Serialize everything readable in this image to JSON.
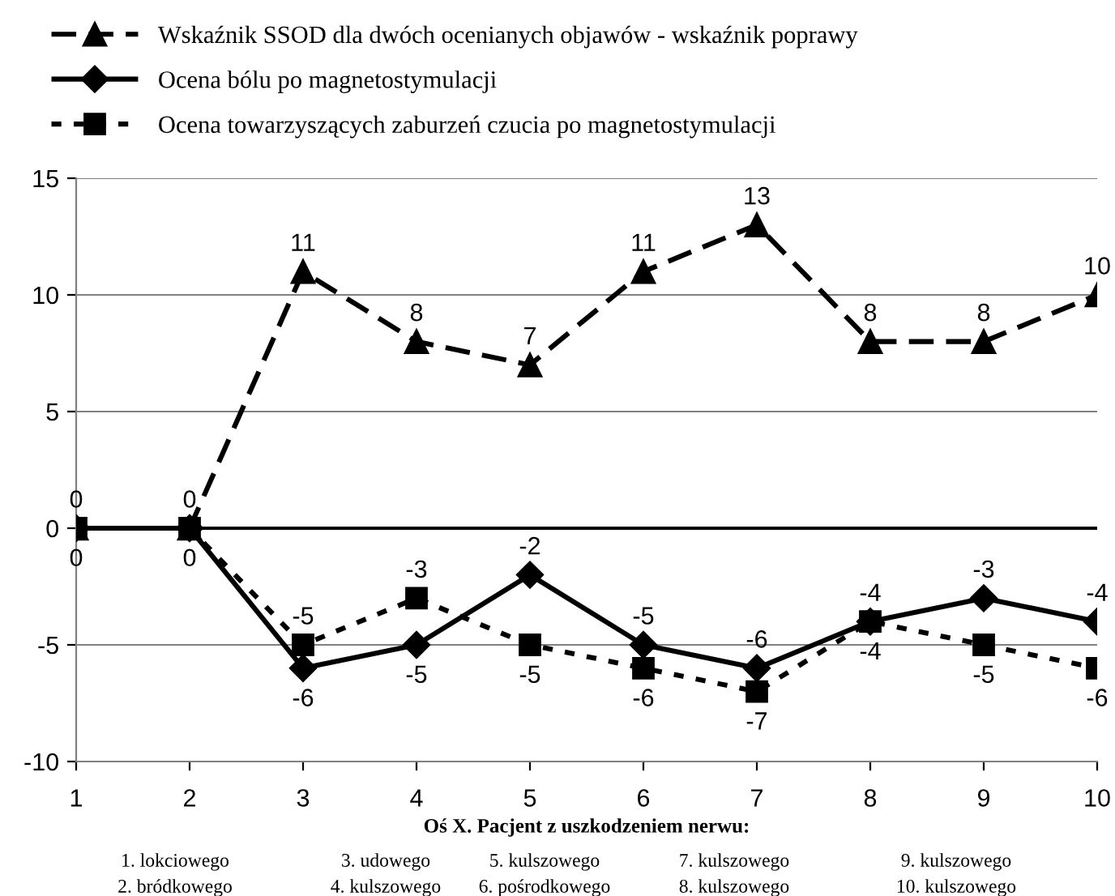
{
  "chart_data": {
    "type": "line",
    "xlabel": "Oś X. Pacjent z uszkodzeniem nerwu:",
    "x": [
      1,
      2,
      3,
      4,
      5,
      6,
      7,
      8,
      9,
      10
    ],
    "xlim": [
      1,
      10
    ],
    "xticks": [
      1,
      2,
      3,
      4,
      5,
      6,
      7,
      8,
      9,
      10
    ],
    "ylim": [
      -10,
      15
    ],
    "yticks": [
      -10,
      -5,
      0,
      5,
      10,
      15
    ],
    "grid": "y",
    "legend": "top",
    "ref_lines": [
      {
        "axis": "y",
        "value": 0,
        "color": "#000000"
      }
    ],
    "series": [
      {
        "name": "Wskaźnik SSOD dla dwóch ocenianych objawów - wskaźnik poprawy",
        "color": "#000000",
        "marker": "triangle",
        "line_style": "dashed",
        "values": [
          0,
          0,
          11,
          8,
          7,
          11,
          13,
          8,
          8,
          10
        ],
        "value_labels": [
          "0",
          "0",
          "11",
          "8",
          "7",
          "11",
          "13",
          "8",
          "8",
          "10"
        ]
      },
      {
        "name": "Ocena bólu po magnetostymulacji",
        "color": "#000000",
        "marker": "diamond",
        "line_style": "solid",
        "values": [
          0,
          0,
          -6,
          -5,
          -2,
          -5,
          -6,
          -4,
          -3,
          -4
        ],
        "value_labels": [
          "0",
          "0",
          "-6",
          "-5",
          "-2",
          "-5",
          "-6",
          "-4",
          "-3",
          "-4"
        ]
      },
      {
        "name": "Ocena towarzyszących zaburzeń czucia po magnetostymulacji",
        "color": "#000000",
        "marker": "square",
        "line_style": "dotted",
        "values": [
          0,
          0,
          -5,
          -3,
          -5,
          -6,
          -7,
          -4,
          -5,
          -6
        ],
        "value_labels": [
          null,
          null,
          "-5",
          "-3",
          "-5",
          "-6",
          "-7",
          "-4",
          "-5",
          "-6"
        ]
      }
    ],
    "annotations": [
      "1. lokciowego",
      "2. bródkowego",
      "3. udowego",
      "4. kulszowego",
      "5. kulszowego",
      "6. pośrodkowego",
      "7. kulszowego",
      "8. kulszowego",
      "9. kulszowego",
      "10. kulszowego"
    ]
  }
}
